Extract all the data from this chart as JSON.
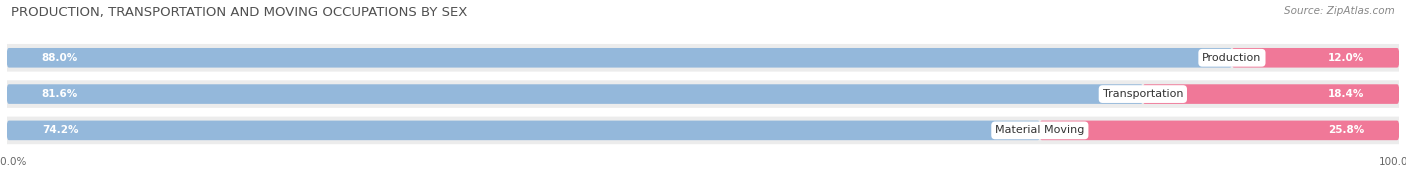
{
  "title": "PRODUCTION, TRANSPORTATION AND MOVING OCCUPATIONS BY SEX",
  "source": "Source: ZipAtlas.com",
  "categories": [
    "Production",
    "Transportation",
    "Material Moving"
  ],
  "male_pct": [
    88.0,
    81.6,
    74.2
  ],
  "female_pct": [
    12.0,
    18.4,
    25.8
  ],
  "male_color": "#94b8db",
  "female_color": "#f07898",
  "bg_strip_color": "#ececec",
  "title_fontsize": 9.5,
  "source_fontsize": 7.5,
  "pct_label_fontsize": 7.5,
  "legend_fontsize": 8.5,
  "axis_label_fontsize": 7.5,
  "category_fontsize": 8.0
}
